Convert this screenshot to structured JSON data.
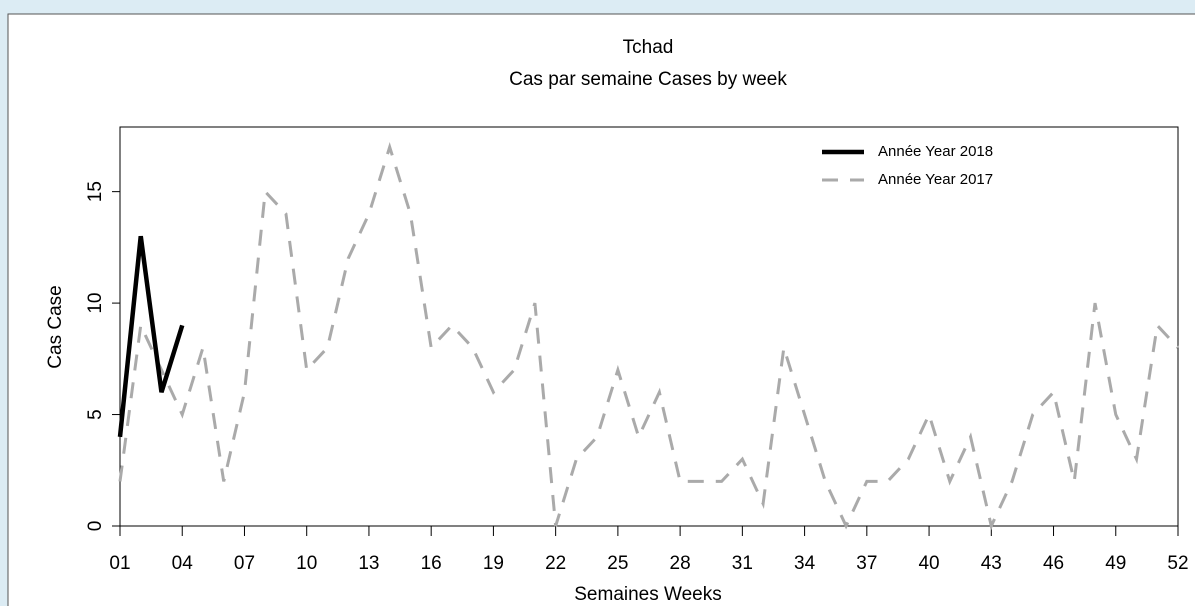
{
  "chart_data": {
    "type": "line",
    "title": "Tchad",
    "subtitle": "Cas par semaine Cases by week",
    "x_label": "Semaines Weeks",
    "y_label": "Cas Case",
    "xlim": [
      1,
      52
    ],
    "ylim": [
      0,
      17.9
    ],
    "xticks": [
      {
        "value": 1,
        "label": "01"
      },
      {
        "value": 4,
        "label": "04"
      },
      {
        "value": 7,
        "label": "07"
      },
      10,
      13,
      16,
      19,
      22,
      25,
      28,
      31,
      34,
      37,
      40,
      43,
      46,
      49,
      52
    ],
    "yticks": [
      0,
      5,
      10,
      15
    ],
    "legend": "top-right",
    "series": [
      {
        "name": "Année Year 2018",
        "color": "#000000",
        "style": "solid",
        "x": [
          1,
          2,
          3,
          4
        ],
        "values": [
          4,
          13,
          6,
          9
        ]
      },
      {
        "name": "Année Year 2017",
        "color": "#aaaaaa",
        "style": "dashed",
        "x": [
          1,
          2,
          3,
          4,
          5,
          6,
          7,
          8,
          9,
          10,
          11,
          12,
          13,
          14,
          15,
          16,
          17,
          18,
          19,
          20,
          21,
          22,
          23,
          24,
          25,
          26,
          27,
          28,
          29,
          30,
          31,
          32,
          33,
          34,
          35,
          36,
          37,
          38,
          39,
          40,
          41,
          42,
          43,
          44,
          45,
          46,
          47,
          48,
          49,
          50,
          51,
          52
        ],
        "values": [
          2,
          9,
          7,
          5,
          8,
          2,
          6,
          15,
          14,
          7,
          8,
          12,
          14,
          17,
          14,
          8,
          9,
          8,
          6,
          7,
          10,
          0,
          3,
          4,
          7,
          4,
          6,
          2,
          2,
          2,
          3,
          1,
          8,
          5,
          2,
          0,
          2,
          2,
          3,
          5,
          2,
          4,
          0,
          2,
          5,
          6,
          2,
          10,
          5,
          3,
          9,
          8
        ]
      }
    ]
  }
}
